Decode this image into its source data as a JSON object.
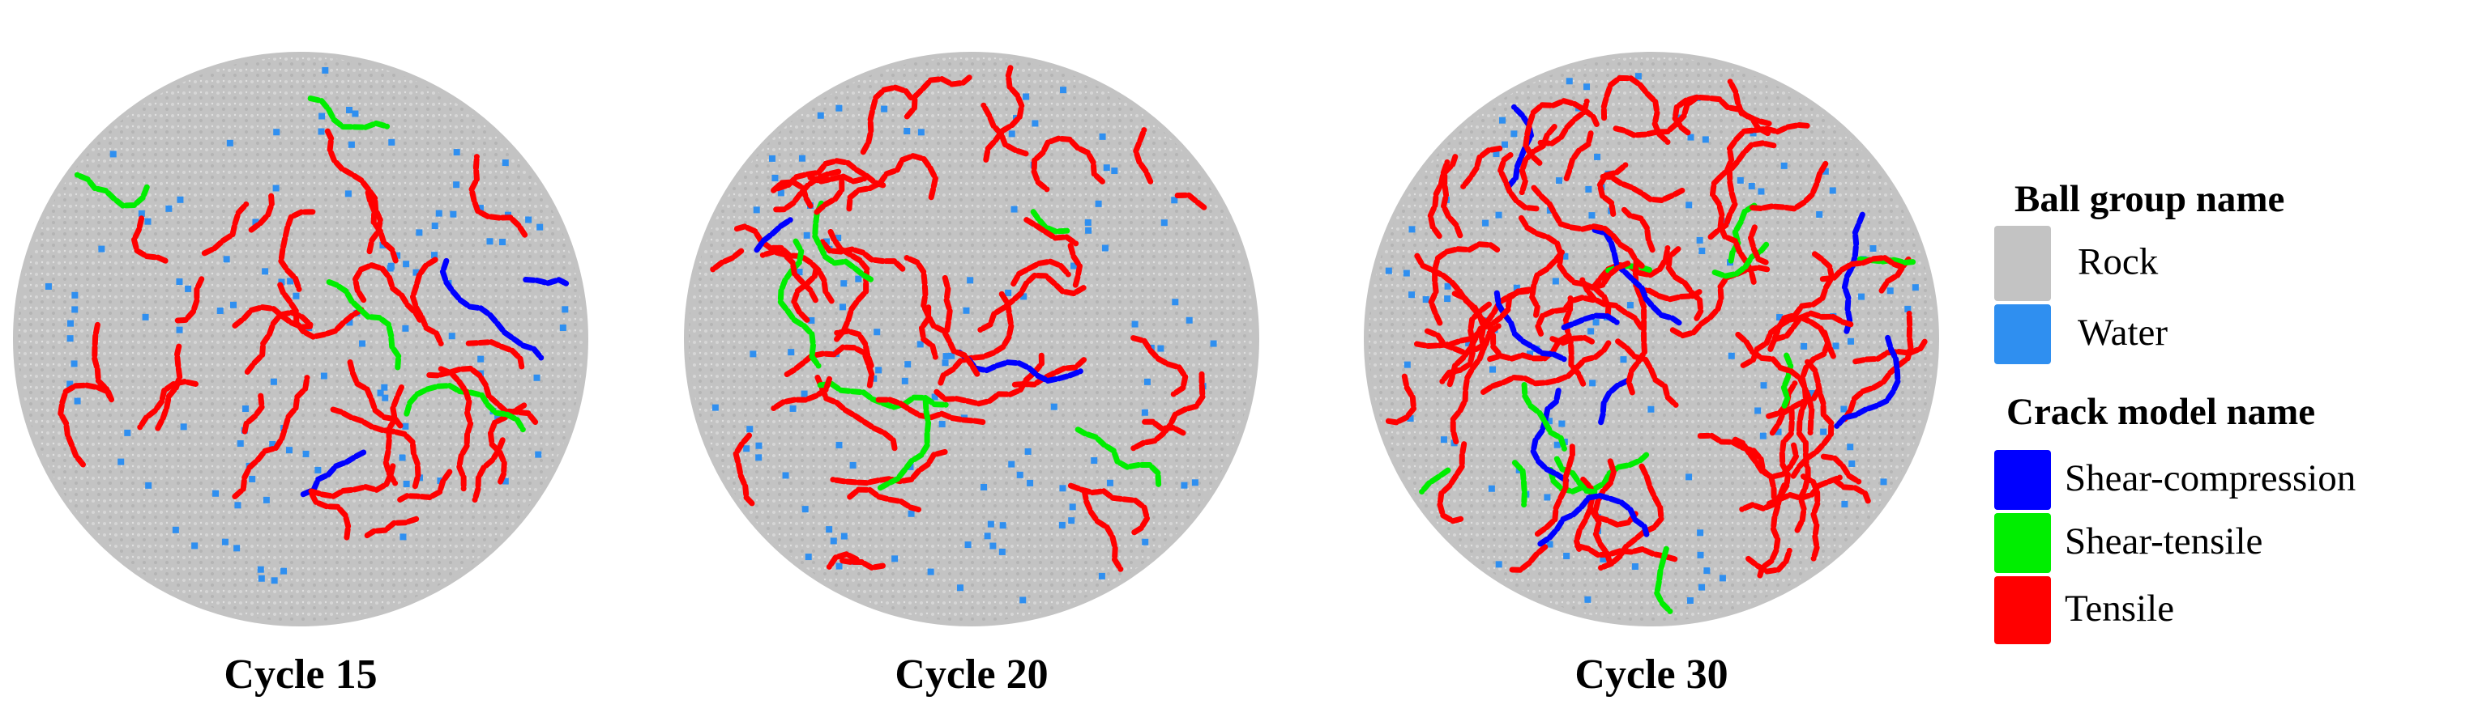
{
  "panels": [
    {
      "caption": "Cycle 15"
    },
    {
      "caption": "Cycle 20"
    },
    {
      "caption": "Cycle 30"
    }
  ],
  "legend": {
    "ball_group": {
      "title": "Ball group name",
      "items": [
        {
          "label": "Rock",
          "color": "#c3c3c3"
        },
        {
          "label": "Water",
          "color": "#2f8ff0"
        }
      ]
    },
    "crack_model": {
      "title": "Crack model name",
      "items": [
        {
          "label": "Shear-compression",
          "color": "#0000ff"
        },
        {
          "label": "Shear-tensile",
          "color": "#00ee00"
        },
        {
          "label": "Tensile",
          "color": "#ff0000"
        }
      ]
    }
  }
}
